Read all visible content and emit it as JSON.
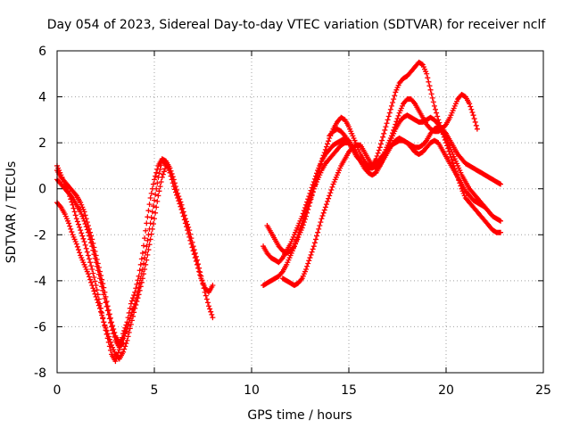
{
  "chart_data": {
    "type": "scatter",
    "title": "Day 054 of 2023, Sidereal Day-to-day VTEC variation (SDTVAR) for receiver nclf",
    "xlabel": "GPS time / hours",
    "ylabel": "SDTVAR / TECUs",
    "xlim": [
      0,
      25
    ],
    "ylim": [
      -8,
      6
    ],
    "xticks": [
      "0",
      "5",
      "10",
      "15",
      "20",
      "25"
    ],
    "yticks": [
      "-8",
      "-6",
      "-4",
      "-2",
      "0",
      "2",
      "4",
      "6"
    ],
    "grid": true,
    "marker": "plus",
    "color": "#ff0000",
    "series": [
      {
        "name": "",
        "x": [
          0.0,
          0.2,
          0.4,
          0.6,
          0.8,
          1.0,
          1.2,
          1.4,
          1.6,
          1.8,
          2.0,
          2.2,
          2.4,
          2.6,
          2.8,
          3.0,
          3.2,
          3.4,
          3.6,
          3.8,
          4.0,
          4.2,
          4.4,
          4.6,
          4.8,
          5.0,
          5.2,
          5.4,
          5.6,
          5.8,
          6.0,
          6.2,
          6.4,
          6.6,
          6.8,
          7.0,
          7.2,
          7.4,
          7.6,
          7.8,
          8.0
        ],
        "y": [
          1.0,
          0.6,
          0.2,
          -0.2,
          -0.7,
          -1.3,
          -1.8,
          -2.3,
          -2.9,
          -3.5,
          -4.2,
          -5.0,
          -5.8,
          -6.5,
          -7.2,
          -7.5,
          -7.0,
          -6.3,
          -5.8,
          -5.0,
          -4.5,
          -3.8,
          -2.8,
          -1.5,
          -0.4,
          0.4,
          1.0,
          1.3,
          1.2,
          0.9,
          0.4,
          -0.2,
          -0.7,
          -1.3,
          -1.8,
          -2.5,
          -3.1,
          -3.8,
          -4.5,
          -5.1,
          -5.6
        ]
      },
      {
        "name": "",
        "x": [
          0.0,
          0.2,
          0.4,
          0.6,
          0.8,
          1.0,
          1.2,
          1.4,
          1.6,
          1.8,
          2.0,
          2.2,
          2.4,
          2.6,
          2.8,
          3.0,
          3.2,
          3.4,
          3.6,
          3.8,
          4.0,
          4.2,
          4.4,
          4.6,
          4.8,
          5.0,
          5.2,
          5.4,
          5.6,
          5.8,
          6.0,
          6.2,
          6.4,
          6.6,
          6.8,
          7.0,
          7.2,
          7.4,
          7.6,
          7.8,
          8.0
        ],
        "y": [
          0.8,
          0.5,
          0.3,
          0.1,
          -0.1,
          -0.3,
          -0.6,
          -1.0,
          -1.6,
          -2.2,
          -2.9,
          -3.6,
          -4.3,
          -5.1,
          -5.8,
          -6.4,
          -6.7,
          -6.5,
          -6.1,
          -5.5,
          -5.0,
          -4.3,
          -3.5,
          -2.5,
          -1.5,
          -0.5,
          0.5,
          1.2,
          1.1,
          0.7,
          0.1,
          -0.4,
          -0.9,
          -1.5,
          -2.1,
          -2.7,
          -3.3,
          -3.9,
          -4.3,
          -4.5,
          -4.2
        ]
      },
      {
        "name": "",
        "x": [
          0.0,
          0.2,
          0.4,
          0.6,
          0.8,
          1.0,
          1.2,
          1.4,
          1.6,
          1.8,
          2.0,
          2.2,
          2.4,
          2.6,
          2.8,
          3.0,
          3.2,
          3.4,
          3.6,
          3.8,
          4.0,
          4.2,
          4.4,
          4.6,
          4.8,
          5.0,
          5.2,
          5.4,
          5.6
        ],
        "y": [
          -0.6,
          -0.8,
          -1.1,
          -1.5,
          -2.0,
          -2.4,
          -2.9,
          -3.3,
          -3.7,
          -4.2,
          -4.7,
          -5.2,
          -5.8,
          -6.3,
          -6.8,
          -7.2,
          -7.4,
          -7.1,
          -6.6,
          -5.9,
          -5.2,
          -4.6,
          -3.9,
          -3.1,
          -2.2,
          -1.3,
          -0.3,
          0.5,
          1.0
        ]
      },
      {
        "name": "",
        "x": [
          0.0,
          0.2,
          0.4,
          0.6,
          0.8,
          1.0,
          1.2,
          1.4,
          1.6,
          1.8,
          2.0,
          2.2,
          2.4,
          2.6,
          2.8,
          3.0,
          3.2,
          3.4
        ],
        "y": [
          0.4,
          0.2,
          0.0,
          -0.2,
          -0.4,
          -0.7,
          -1.0,
          -1.4,
          -1.9,
          -2.5,
          -3.2,
          -3.9,
          -4.6,
          -5.3,
          -6.0,
          -6.6,
          -6.9,
          -6.7
        ]
      },
      {
        "name": "",
        "x": [
          10.6,
          10.8,
          11.0,
          11.2,
          11.4,
          11.6,
          11.8,
          12.0,
          12.2,
          12.4,
          12.6,
          12.8,
          13.0,
          13.2,
          13.4,
          13.6,
          13.8,
          14.0,
          14.2,
          14.4,
          14.6,
          14.8,
          15.0,
          15.2,
          15.4,
          15.6,
          15.8,
          16.0,
          16.2,
          16.4,
          16.6,
          16.8,
          17.0,
          17.2,
          17.4,
          17.6,
          17.8,
          18.0,
          18.2,
          18.4,
          18.6,
          18.8,
          19.0,
          19.2,
          19.4,
          19.6,
          19.8,
          20.0,
          20.2,
          20.4,
          20.6,
          20.8,
          21.0,
          21.2,
          21.4,
          21.6,
          21.8,
          22.0,
          22.2,
          22.4,
          22.6,
          22.8
        ],
        "y": [
          -2.5,
          -2.8,
          -3.0,
          -3.1,
          -3.2,
          -3.0,
          -2.7,
          -2.4,
          -2.0,
          -1.6,
          -1.2,
          -0.7,
          -0.2,
          0.3,
          0.8,
          1.2,
          1.5,
          1.7,
          1.9,
          2.0,
          2.1,
          2.2,
          2.1,
          1.8,
          1.5,
          1.2,
          1.0,
          0.9,
          1.0,
          1.3,
          1.8,
          2.4,
          3.0,
          3.6,
          4.2,
          4.6,
          4.8,
          4.9,
          5.1,
          5.3,
          5.5,
          5.4,
          5.0,
          4.3,
          3.6,
          3.0,
          2.5,
          2.0,
          1.5,
          1.0,
          0.5,
          0.0,
          -0.4,
          -0.6,
          -0.8,
          -1.0,
          -1.2,
          -1.4,
          -1.6,
          -1.8,
          -1.9,
          -1.9
        ]
      },
      {
        "name": "",
        "x": [
          10.6,
          10.8,
          11.0,
          11.2,
          11.4,
          11.6,
          11.8,
          12.0,
          12.2,
          12.4,
          12.6,
          12.8,
          13.0,
          13.2,
          13.4,
          13.6,
          13.8,
          14.0,
          14.2,
          14.4,
          14.6,
          14.8,
          15.0,
          15.2,
          15.4,
          15.6,
          15.8,
          16.0,
          16.2,
          16.4,
          16.6,
          16.8,
          17.0,
          17.2,
          17.4,
          17.6,
          17.8,
          18.0,
          18.2,
          18.4,
          18.6,
          18.8,
          19.0,
          19.2,
          19.4,
          19.6,
          19.8,
          20.0,
          20.2,
          20.4,
          20.6,
          20.8,
          21.0,
          21.2,
          21.4,
          21.6,
          21.8,
          22.0,
          22.2,
          22.4,
          22.6,
          22.8
        ],
        "y": [
          -4.2,
          -4.1,
          -4.0,
          -3.9,
          -3.8,
          -3.6,
          -3.3,
          -2.9,
          -2.5,
          -2.0,
          -1.5,
          -1.0,
          -0.5,
          0.0,
          0.4,
          0.8,
          1.1,
          1.3,
          1.5,
          1.7,
          1.9,
          2.0,
          2.0,
          1.8,
          1.5,
          1.2,
          0.9,
          0.7,
          0.6,
          0.7,
          1.0,
          1.4,
          1.8,
          2.2,
          2.6,
          2.9,
          3.1,
          3.2,
          3.1,
          3.0,
          2.9,
          2.9,
          3.0,
          3.1,
          3.0,
          2.8,
          2.5,
          2.2,
          1.8,
          1.4,
          1.0,
          0.6,
          0.3,
          0.0,
          -0.2,
          -0.4,
          -0.6,
          -0.8,
          -1.0,
          -1.2,
          -1.3,
          -1.4
        ]
      },
      {
        "name": "",
        "x": [
          10.8,
          11.0,
          11.2,
          11.4,
          11.6,
          11.8,
          12.0,
          12.2,
          12.4,
          12.6,
          12.8,
          13.0,
          13.2,
          13.4,
          13.6,
          13.8,
          14.0,
          14.2,
          14.4,
          14.6,
          14.8,
          15.0,
          15.2,
          15.4,
          15.6,
          15.8,
          16.0,
          16.2,
          16.4,
          16.6,
          16.8,
          17.0,
          17.2,
          17.4,
          17.6,
          17.8,
          18.0,
          18.2,
          18.4,
          18.6,
          18.8,
          19.0,
          19.2,
          19.4,
          19.6,
          19.8,
          20.0,
          20.2,
          20.4,
          20.6,
          20.8,
          21.0,
          21.2,
          21.4,
          21.6,
          21.8,
          22.0,
          22.2,
          22.4,
          22.6,
          22.8
        ],
        "y": [
          -1.6,
          -1.9,
          -2.2,
          -2.5,
          -2.7,
          -2.8,
          -2.7,
          -2.5,
          -2.1,
          -1.7,
          -1.2,
          -0.6,
          0.0,
          0.6,
          1.2,
          1.7,
          2.2,
          2.6,
          2.9,
          3.1,
          3.0,
          2.7,
          2.3,
          1.9,
          1.5,
          1.2,
          1.0,
          1.0,
          1.1,
          1.3,
          1.5,
          1.7,
          1.9,
          2.0,
          2.1,
          2.1,
          2.0,
          1.9,
          1.8,
          1.8,
          1.9,
          2.1,
          2.4,
          2.6,
          2.7,
          2.6,
          2.4,
          2.1,
          1.8,
          1.5,
          1.3,
          1.1,
          1.0,
          0.9,
          0.8,
          0.7,
          0.6,
          0.5,
          0.4,
          0.3,
          0.2
        ]
      },
      {
        "name": "",
        "x": [
          11.6,
          11.8,
          12.0,
          12.2,
          12.4,
          12.6,
          12.8,
          13.0,
          13.2,
          13.4,
          13.6,
          13.8,
          14.0,
          14.2,
          14.4,
          14.6,
          14.8,
          15.0,
          15.2,
          15.4,
          15.6,
          15.8,
          16.0,
          16.2,
          16.4,
          16.6,
          16.8,
          17.0,
          17.2,
          17.4,
          17.6,
          17.8,
          18.0,
          18.2,
          18.4,
          18.6,
          18.8,
          19.0,
          19.2,
          19.4,
          19.6,
          19.8,
          20.0,
          20.2,
          20.4,
          20.6,
          20.8,
          21.0,
          21.2,
          21.4,
          21.6,
          21.8,
          22.0
        ],
        "y": [
          -3.9,
          -4.0,
          -4.1,
          -4.2,
          -4.1,
          -3.9,
          -3.5,
          -3.0,
          -2.5,
          -1.9,
          -1.3,
          -0.8,
          -0.3,
          0.2,
          0.6,
          1.0,
          1.3,
          1.6,
          1.8,
          1.9,
          1.9,
          1.6,
          1.3,
          1.0,
          0.9,
          1.0,
          1.3,
          1.6,
          1.9,
          2.1,
          2.2,
          2.1,
          2.0,
          1.8,
          1.6,
          1.5,
          1.6,
          1.8,
          2.0,
          2.1,
          2.0,
          1.7,
          1.4,
          1.1,
          0.8,
          0.5,
          0.2,
          -0.1,
          -0.3,
          -0.5,
          -0.6,
          -0.7,
          -0.8
        ]
      },
      {
        "name": "",
        "x": [
          14.0,
          14.2,
          14.4,
          14.6,
          14.8,
          15.0,
          15.2,
          15.4,
          15.6,
          15.8,
          16.0,
          16.2,
          16.4,
          16.6,
          16.8,
          17.0,
          17.2,
          17.4,
          17.6,
          17.8,
          18.0,
          18.2,
          18.4,
          18.6,
          18.8,
          19.0,
          19.2,
          19.4,
          19.6,
          19.8,
          20.0,
          20.2,
          20.4,
          20.6,
          20.8,
          21.0,
          21.2,
          21.4,
          21.6
        ],
        "y": [
          2.3,
          2.5,
          2.6,
          2.5,
          2.3,
          2.0,
          1.7,
          1.4,
          1.2,
          1.0,
          0.9,
          0.9,
          1.0,
          1.2,
          1.5,
          1.9,
          2.3,
          2.8,
          3.3,
          3.7,
          3.9,
          3.9,
          3.7,
          3.4,
          3.1,
          2.8,
          2.6,
          2.5,
          2.5,
          2.6,
          2.8,
          3.1,
          3.5,
          3.9,
          4.1,
          4.0,
          3.7,
          3.2,
          2.6
        ]
      }
    ]
  }
}
